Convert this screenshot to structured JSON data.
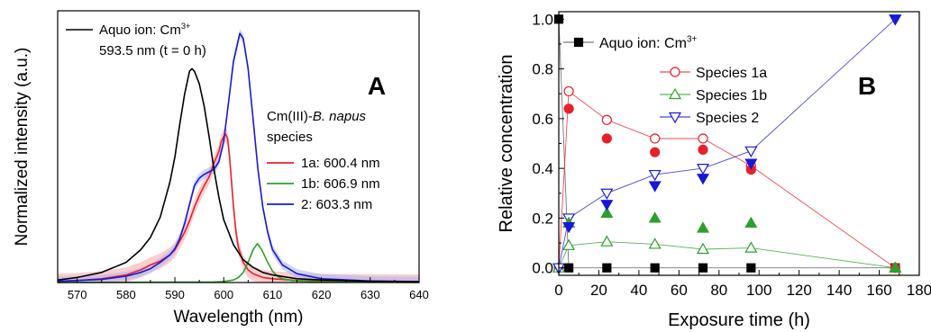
{
  "chart_data": [
    {
      "panel": "A",
      "type": "line",
      "xlabel": "Wavelength (nm)",
      "ylabel": "Normalized intensity (a.u.)",
      "xlim": [
        566,
        640
      ],
      "ylim": [
        0,
        1.08
      ],
      "x_ticks": [
        "570",
        "580",
        "590",
        "600",
        "610",
        "620",
        "630",
        "640"
      ],
      "x_tick_values": [
        570,
        580,
        590,
        600,
        610,
        620,
        630,
        640
      ],
      "y_ticks_labeled": false,
      "grid": false,
      "legend_aquo": {
        "line1_main": "Aquo ion: Cm",
        "line1_sup": "3+",
        "line2": "593.5 nm (t = 0 h)"
      },
      "legend_group": {
        "title_pre": "Cm(III)-",
        "title_italic": "B. napus",
        "title_line2": "species"
      },
      "series": [
        {
          "name": "1a: 600.4 nm",
          "color": "#e8202a",
          "band": "#f4a6a6",
          "x": [
            566,
            570,
            575,
            580,
            583,
            585,
            587,
            589,
            590,
            591,
            592,
            593,
            594,
            595,
            596,
            597,
            598,
            599,
            599.5,
            600,
            600.4,
            600.8,
            601.2,
            601.6,
            602,
            602.5,
            603,
            604,
            605,
            606,
            608,
            610,
            615,
            620,
            630,
            640
          ],
          "y": [
            0.005,
            0.008,
            0.015,
            0.03,
            0.05,
            0.07,
            0.085,
            0.11,
            0.13,
            0.165,
            0.2,
            0.245,
            0.3,
            0.345,
            0.385,
            0.42,
            0.475,
            0.52,
            0.56,
            0.58,
            0.59,
            0.57,
            0.5,
            0.4,
            0.3,
            0.2,
            0.14,
            0.08,
            0.05,
            0.035,
            0.02,
            0.015,
            0.008,
            0.005,
            0.003,
            0.002
          ]
        },
        {
          "name": "1b: 606.9 nm",
          "color": "#2ca02c",
          "x": [
            566,
            598,
            600,
            602,
            603,
            604,
            605,
            606,
            606.9,
            607.8,
            609,
            610,
            611,
            612,
            614,
            620,
            640
          ],
          "y": [
            0.0,
            0.002,
            0.004,
            0.01,
            0.02,
            0.04,
            0.08,
            0.13,
            0.155,
            0.13,
            0.08,
            0.045,
            0.025,
            0.015,
            0.008,
            0.003,
            0.0
          ]
        },
        {
          "name": "2: 603.3 nm",
          "color": "#1818d8",
          "band": "#a9b4f2",
          "x": [
            566,
            570,
            575,
            580,
            583,
            585,
            587,
            589,
            590,
            591,
            592,
            593,
            594,
            595,
            596,
            597,
            598,
            599,
            600,
            601,
            602,
            603.3,
            604,
            605,
            606,
            607,
            608,
            609,
            610,
            612,
            615,
            620,
            630,
            640
          ],
          "y": [
            0.005,
            0.008,
            0.012,
            0.025,
            0.04,
            0.055,
            0.08,
            0.11,
            0.135,
            0.175,
            0.235,
            0.31,
            0.385,
            0.415,
            0.43,
            0.44,
            0.45,
            0.48,
            0.56,
            0.72,
            0.88,
            0.99,
            0.97,
            0.85,
            0.65,
            0.45,
            0.3,
            0.2,
            0.13,
            0.07,
            0.035,
            0.015,
            0.006,
            0.004
          ]
        },
        {
          "name": "Aquo ion: Cm3+ 593.5 nm (t = 0 h)",
          "color": "#000000",
          "x": [
            566,
            570,
            575,
            580,
            583,
            585,
            587,
            589,
            590,
            591,
            592,
            593,
            593.5,
            594,
            595,
            596,
            597,
            598,
            599,
            600,
            602,
            604,
            606,
            608,
            610,
            615,
            620,
            630,
            640
          ],
          "y": [
            0.01,
            0.02,
            0.04,
            0.08,
            0.13,
            0.18,
            0.26,
            0.4,
            0.5,
            0.63,
            0.75,
            0.84,
            0.85,
            0.84,
            0.79,
            0.7,
            0.58,
            0.45,
            0.34,
            0.25,
            0.15,
            0.09,
            0.06,
            0.04,
            0.03,
            0.015,
            0.01,
            0.005,
            0.003
          ]
        }
      ]
    },
    {
      "panel": "B",
      "type": "scatter",
      "xlabel": "Exposure time (h)",
      "ylabel": "Relative concentration",
      "xlim": [
        0,
        180
      ],
      "ylim": [
        -0.03,
        1.03
      ],
      "x_ticks": [
        "0",
        "20",
        "40",
        "60",
        "80",
        "100",
        "120",
        "140",
        "160",
        "180"
      ],
      "x_tick_values": [
        0,
        20,
        40,
        60,
        80,
        100,
        120,
        140,
        160,
        180
      ],
      "y_ticks": [
        "0.0",
        "0.2",
        "0.4",
        "0.6",
        "0.8",
        "1.0"
      ],
      "y_tick_values": [
        0,
        0.2,
        0.4,
        0.6,
        0.8,
        1.0
      ],
      "grid": false,
      "series": [
        {
          "name": "Aquo ion: Cm",
          "name_sup": "3+",
          "color": "#000000",
          "marker": "square",
          "filled": true,
          "x": [
            0,
            5,
            24,
            48,
            72,
            96,
            168
          ],
          "y": [
            1.0,
            0.0,
            0.0,
            0.0,
            0.0,
            0.0,
            0.0
          ]
        },
        {
          "name": "Species 1a",
          "color": "#e8202a",
          "marker": "circle",
          "filled": false,
          "x": [
            0,
            5,
            24,
            48,
            72,
            96,
            168
          ],
          "y": [
            0.0,
            0.71,
            0.595,
            0.52,
            0.52,
            0.41,
            0.0
          ]
        },
        {
          "name": "Species 1b",
          "color": "#2ca02c",
          "marker": "triangle-up",
          "filled": false,
          "x": [
            0,
            5,
            24,
            48,
            72,
            96,
            168
          ],
          "y": [
            0.0,
            0.09,
            0.105,
            0.095,
            0.075,
            0.08,
            0.0
          ]
        },
        {
          "name": "Species 2",
          "color": "#1818d8",
          "marker": "triangle-down",
          "filled": false,
          "x": [
            0,
            5,
            24,
            48,
            72,
            96,
            168
          ],
          "y": [
            0.0,
            0.2,
            0.3,
            0.375,
            0.4,
            0.47,
            1.0
          ]
        },
        {
          "name": "",
          "color": "#e8202a",
          "marker": "circle",
          "filled": true,
          "x": [
            5,
            24,
            48,
            72,
            96,
            168
          ],
          "y": [
            0.64,
            0.52,
            0.465,
            0.475,
            0.395,
            0.0
          ]
        },
        {
          "name": "",
          "color": "#2ca02c",
          "marker": "triangle-up",
          "filled": true,
          "x": [
            5,
            24,
            48,
            72,
            96,
            168
          ],
          "y": [
            0.18,
            0.22,
            0.2,
            0.16,
            0.18,
            0.0
          ]
        },
        {
          "name": "",
          "color": "#1818d8",
          "marker": "triangle-down",
          "filled": true,
          "x": [
            5,
            24,
            48,
            72,
            96,
            168
          ],
          "y": [
            0.165,
            0.255,
            0.33,
            0.36,
            0.42,
            1.0
          ]
        }
      ]
    }
  ],
  "panel_labels": {
    "a": "A",
    "b": "B"
  }
}
